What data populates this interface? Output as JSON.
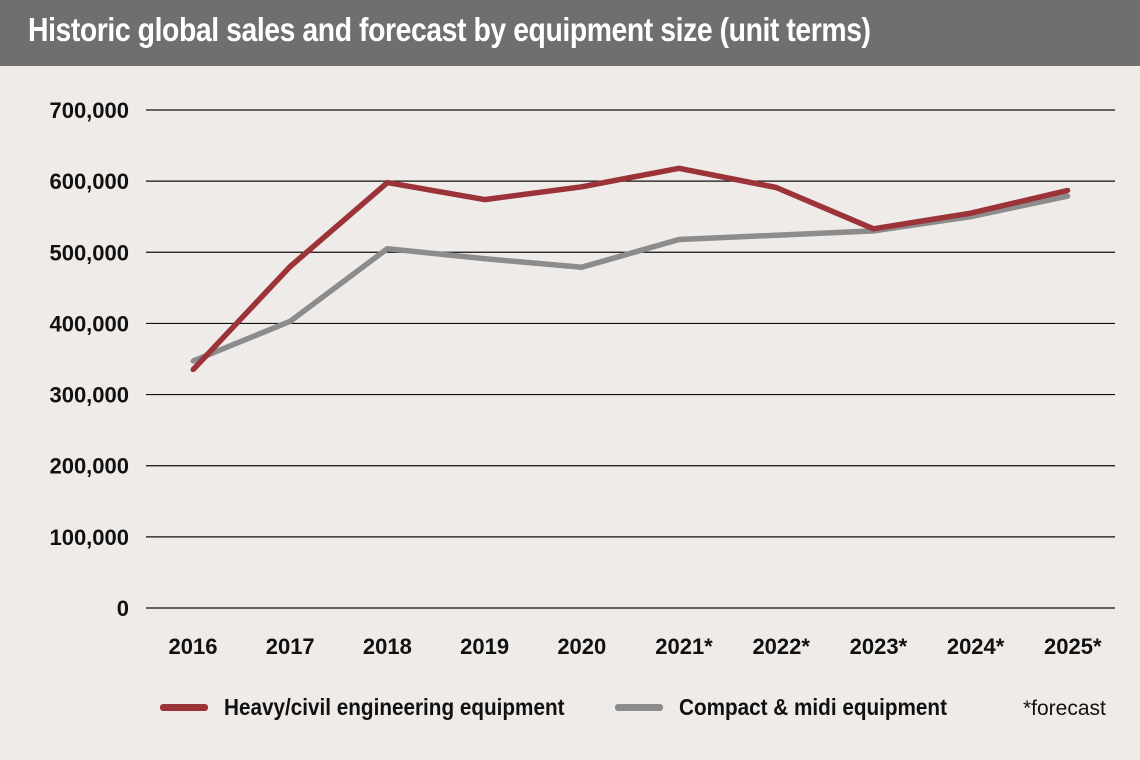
{
  "chart_data": {
    "type": "line",
    "title": "Historic global sales and forecast by equipment size (unit terms)",
    "categories": [
      "2016",
      "2017",
      "2018",
      "2019",
      "2020",
      "2021*",
      "2022*",
      "2023*",
      "2024*",
      "2025*"
    ],
    "y_ticks": [
      "700,000",
      "600,000",
      "500,000",
      "400,000",
      "300,000",
      "200,000",
      "100,000",
      "0"
    ],
    "ylim": [
      0,
      700000
    ],
    "grid": "horizontal",
    "legend_position": "bottom",
    "series": [
      {
        "name": "Heavy/civil engineering equipment",
        "color": "#9b3339",
        "values": [
          335000,
          480000,
          598000,
          574000,
          592000,
          618000,
          591000,
          533000,
          555000,
          587000
        ]
      },
      {
        "name": "Compact & midi equipment",
        "color": "#8c8c8c",
        "values": [
          347000,
          403000,
          505000,
          491000,
          479000,
          518000,
          524000,
          530000,
          550000,
          579000
        ]
      }
    ],
    "footnote": "*forecast"
  }
}
